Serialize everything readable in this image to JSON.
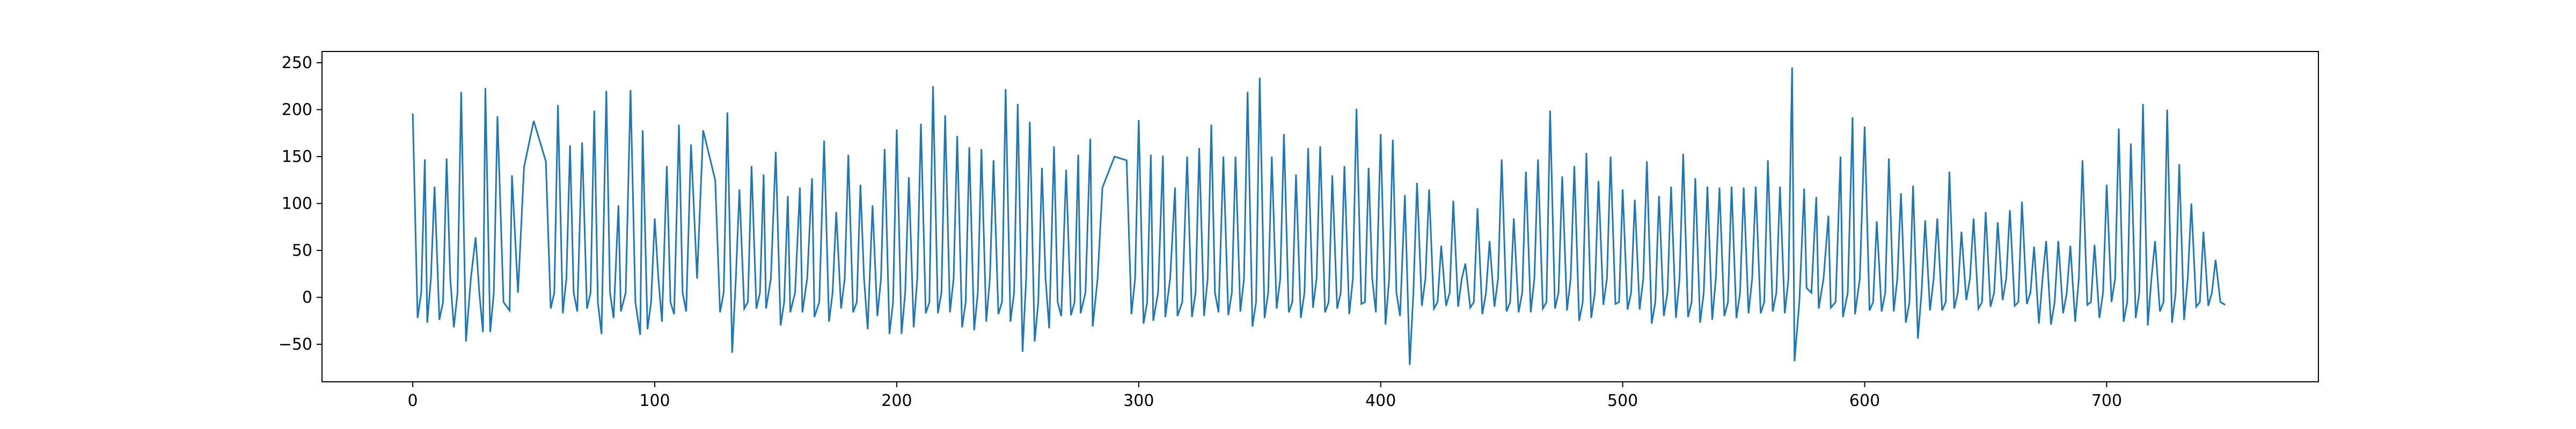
{
  "chart_data": {
    "type": "line",
    "title": "",
    "xlabel": "",
    "ylabel": "",
    "xlim": [
      -37.5,
      787.5
    ],
    "ylim": [
      -90,
      262
    ],
    "x_ticks": [
      0,
      100,
      200,
      300,
      400,
      500,
      600,
      700
    ],
    "y_ticks": [
      -50,
      0,
      50,
      100,
      150,
      200,
      250
    ],
    "grid": false,
    "legend": "none",
    "series": [
      {
        "color": "#1f77b4",
        "n_points": 750,
        "x_start": 0,
        "x_end": 749,
        "peaks": [
          [
            0,
            196
          ],
          [
            5,
            147
          ],
          [
            9,
            118
          ],
          [
            14,
            148
          ],
          [
            20,
            219
          ],
          [
            26,
            64
          ],
          [
            30,
            223
          ],
          [
            35,
            193
          ],
          [
            41,
            130
          ],
          [
            46,
            139
          ],
          [
            50,
            188
          ],
          [
            55,
            145
          ],
          [
            60,
            205
          ],
          [
            65,
            162
          ],
          [
            70,
            165
          ],
          [
            75,
            199
          ],
          [
            80,
            220
          ],
          [
            85,
            98
          ],
          [
            90,
            221
          ],
          [
            95,
            178
          ],
          [
            100,
            84
          ],
          [
            105,
            140
          ],
          [
            110,
            184
          ],
          [
            115,
            163
          ],
          [
            120,
            178
          ],
          [
            125,
            125
          ],
          [
            130,
            197
          ],
          [
            135,
            115
          ],
          [
            140,
            140
          ],
          [
            145,
            131
          ],
          [
            150,
            155
          ],
          [
            155,
            108
          ],
          [
            160,
            117
          ],
          [
            165,
            127
          ],
          [
            170,
            167
          ],
          [
            175,
            91
          ],
          [
            180,
            152
          ],
          [
            185,
            120
          ],
          [
            190,
            98
          ],
          [
            195,
            158
          ],
          [
            200,
            179
          ],
          [
            205,
            128
          ],
          [
            210,
            185
          ],
          [
            215,
            225
          ],
          [
            220,
            194
          ],
          [
            225,
            172
          ],
          [
            230,
            160
          ],
          [
            235,
            158
          ],
          [
            240,
            146
          ],
          [
            245,
            222
          ],
          [
            250,
            206
          ],
          [
            255,
            187
          ],
          [
            260,
            138
          ],
          [
            265,
            161
          ],
          [
            270,
            136
          ],
          [
            275,
            152
          ],
          [
            280,
            169
          ],
          [
            285,
            117
          ],
          [
            290,
            150
          ],
          [
            295,
            146
          ],
          [
            300,
            189
          ],
          [
            305,
            152
          ],
          [
            310,
            151
          ],
          [
            315,
            117
          ],
          [
            320,
            150
          ],
          [
            325,
            159
          ],
          [
            330,
            184
          ],
          [
            335,
            150
          ],
          [
            340,
            150
          ],
          [
            345,
            219
          ],
          [
            350,
            234
          ],
          [
            355,
            150
          ],
          [
            360,
            174
          ],
          [
            365,
            131
          ],
          [
            370,
            159
          ],
          [
            375,
            161
          ],
          [
            380,
            130
          ],
          [
            385,
            140
          ],
          [
            390,
            201
          ],
          [
            395,
            138
          ],
          [
            400,
            174
          ],
          [
            405,
            168
          ],
          [
            410,
            109
          ],
          [
            415,
            122
          ],
          [
            420,
            115
          ],
          [
            425,
            55
          ],
          [
            430,
            103
          ],
          [
            435,
            36
          ],
          [
            440,
            95
          ],
          [
            445,
            60
          ],
          [
            450,
            147
          ],
          [
            455,
            84
          ],
          [
            460,
            134
          ],
          [
            465,
            147
          ],
          [
            470,
            199
          ],
          [
            475,
            129
          ],
          [
            480,
            140
          ],
          [
            485,
            154
          ],
          [
            490,
            124
          ],
          [
            495,
            150
          ],
          [
            500,
            115
          ],
          [
            505,
            104
          ],
          [
            510,
            145
          ],
          [
            515,
            108
          ],
          [
            520,
            118
          ],
          [
            525,
            153
          ],
          [
            530,
            127
          ],
          [
            535,
            118
          ],
          [
            540,
            117
          ],
          [
            545,
            118
          ],
          [
            550,
            117
          ],
          [
            555,
            118
          ],
          [
            560,
            146
          ],
          [
            565,
            118
          ],
          [
            570,
            245
          ],
          [
            575,
            116
          ],
          [
            580,
            107
          ],
          [
            585,
            87
          ],
          [
            590,
            150
          ],
          [
            595,
            192
          ],
          [
            600,
            182
          ],
          [
            605,
            81
          ],
          [
            610,
            148
          ],
          [
            615,
            111
          ],
          [
            620,
            119
          ],
          [
            625,
            82
          ],
          [
            630,
            84
          ],
          [
            635,
            134
          ],
          [
            640,
            70
          ],
          [
            645,
            84
          ],
          [
            650,
            91
          ],
          [
            655,
            80
          ],
          [
            660,
            93
          ],
          [
            665,
            102
          ],
          [
            670,
            54
          ],
          [
            675,
            60
          ],
          [
            680,
            60
          ],
          [
            685,
            55
          ],
          [
            690,
            146
          ],
          [
            695,
            56
          ],
          [
            700,
            120
          ],
          [
            705,
            180
          ],
          [
            710,
            164
          ],
          [
            715,
            206
          ],
          [
            720,
            60
          ],
          [
            725,
            200
          ],
          [
            730,
            142
          ],
          [
            735,
            100
          ],
          [
            740,
            70
          ],
          [
            745,
            40
          ]
        ],
        "troughs": [
          [
            2,
            -22
          ],
          [
            6,
            -27
          ],
          [
            11,
            -24
          ],
          [
            17,
            -32
          ],
          [
            22,
            -47
          ],
          [
            29,
            -37
          ],
          [
            32,
            -37
          ],
          [
            40,
            -14
          ],
          [
            46,
            -42
          ],
          [
            50,
            -42
          ],
          [
            57,
            -12
          ],
          [
            62,
            -17
          ],
          [
            68,
            -15
          ],
          [
            72,
            -12
          ],
          [
            78,
            -39
          ],
          [
            83,
            -22
          ],
          [
            86,
            -15
          ],
          [
            94,
            -40
          ],
          [
            97,
            -34
          ],
          [
            103,
            -26
          ],
          [
            108,
            -18
          ],
          [
            113,
            -15
          ],
          [
            120,
            -18
          ],
          [
            127,
            -16
          ],
          [
            132,
            -59
          ],
          [
            137,
            -12
          ],
          [
            142,
            -12
          ],
          [
            146,
            -12
          ],
          [
            152,
            -30
          ],
          [
            156,
            -16
          ],
          [
            161,
            -16
          ],
          [
            166,
            -21
          ],
          [
            172,
            -26
          ],
          [
            177,
            -12
          ],
          [
            182,
            -16
          ],
          [
            188,
            -34
          ],
          [
            192,
            -20
          ],
          [
            197,
            -39
          ],
          [
            202,
            -39
          ],
          [
            207,
            -32
          ],
          [
            212,
            -17
          ],
          [
            217,
            -17
          ],
          [
            222,
            -16
          ],
          [
            227,
            -32
          ],
          [
            232,
            -35
          ],
          [
            237,
            -26
          ],
          [
            242,
            -18
          ],
          [
            247,
            -26
          ],
          [
            252,
            -58
          ],
          [
            257,
            -47
          ],
          [
            263,
            -33
          ],
          [
            268,
            -20
          ],
          [
            272,
            -19
          ],
          [
            276,
            -17
          ],
          [
            281,
            -31
          ],
          [
            285,
            -17
          ],
          [
            290,
            -32
          ],
          [
            297,
            -18
          ],
          [
            302,
            -28
          ],
          [
            306,
            -25
          ],
          [
            311,
            -21
          ],
          [
            316,
            -20
          ],
          [
            322,
            -21
          ],
          [
            327,
            -20
          ],
          [
            333,
            -16
          ],
          [
            337,
            -19
          ],
          [
            342,
            -15
          ],
          [
            347,
            -31
          ],
          [
            352,
            -22
          ],
          [
            357,
            -12
          ],
          [
            362,
            -16
          ],
          [
            367,
            -22
          ],
          [
            372,
            -11
          ],
          [
            377,
            -16
          ],
          [
            382,
            -12
          ],
          [
            387,
            -18
          ],
          [
            392,
            -7
          ],
          [
            398,
            -16
          ],
          [
            402,
            -29
          ],
          [
            408,
            -20
          ],
          [
            412,
            -72
          ],
          [
            417,
            -9
          ],
          [
            422,
            -12
          ],
          [
            427,
            -9
          ],
          [
            432,
            -10
          ],
          [
            437,
            -11
          ],
          [
            442,
            -18
          ],
          [
            447,
            -10
          ],
          [
            452,
            -15
          ],
          [
            457,
            -16
          ],
          [
            462,
            -16
          ],
          [
            467,
            -12
          ],
          [
            472,
            -12
          ],
          [
            477,
            -14
          ],
          [
            482,
            -25
          ],
          [
            487,
            -22
          ],
          [
            492,
            -8
          ],
          [
            497,
            -7
          ],
          [
            502,
            -13
          ],
          [
            507,
            -13
          ],
          [
            512,
            -28
          ],
          [
            517,
            -20
          ],
          [
            522,
            -22
          ],
          [
            527,
            -21
          ],
          [
            532,
            -27
          ],
          [
            537,
            -24
          ],
          [
            542,
            -20
          ],
          [
            547,
            -22
          ],
          [
            552,
            -17
          ],
          [
            557,
            -17
          ],
          [
            562,
            -15
          ],
          [
            567,
            -17
          ],
          [
            571,
            -68
          ],
          [
            576,
            10
          ],
          [
            581,
            -12
          ],
          [
            586,
            -11
          ],
          [
            591,
            -21
          ],
          [
            596,
            -18
          ],
          [
            602,
            -14
          ],
          [
            607,
            -15
          ],
          [
            612,
            -15
          ],
          [
            617,
            -27
          ],
          [
            622,
            -44
          ],
          [
            627,
            -14
          ],
          [
            632,
            -14
          ],
          [
            637,
            -12
          ],
          [
            642,
            -3
          ],
          [
            647,
            -12
          ],
          [
            652,
            -10
          ],
          [
            657,
            -3
          ],
          [
            662,
            -9
          ],
          [
            667,
            -7
          ],
          [
            672,
            -28
          ],
          [
            677,
            -29
          ],
          [
            682,
            -17
          ],
          [
            687,
            -26
          ],
          [
            692,
            -8
          ],
          [
            697,
            -22
          ],
          [
            702,
            -5
          ],
          [
            707,
            -26
          ],
          [
            712,
            -22
          ],
          [
            717,
            -30
          ],
          [
            722,
            -15
          ],
          [
            727,
            -27
          ],
          [
            732,
            -24
          ],
          [
            737,
            -10
          ],
          [
            742,
            -9
          ],
          [
            749,
            -8
          ]
        ]
      }
    ]
  }
}
